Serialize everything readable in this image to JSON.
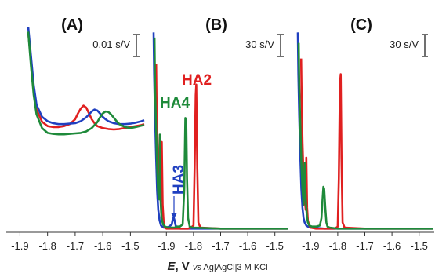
{
  "chart_data": [
    {
      "panel": "(A)",
      "type": "line",
      "title": "(A)",
      "scale_bar": "0.01 s/V",
      "xlim": [
        -1.87,
        -1.45
      ],
      "ylim": [
        -0.06,
        0.24
      ],
      "xticks": [
        "-1.9",
        "-1.8",
        "-1.7",
        "-1.6",
        "-1.5"
      ],
      "xtick_values": [
        -1.9,
        -1.8,
        -1.7,
        -1.6,
        -1.5
      ],
      "series": [
        {
          "color": "#e02020",
          "x": [
            -1.87,
            -1.86,
            -1.85,
            -1.84,
            -1.82,
            -1.8,
            -1.78,
            -1.76,
            -1.74,
            -1.72,
            -1.7,
            -1.69,
            -1.68,
            -1.67,
            -1.66,
            -1.65,
            -1.64,
            -1.63,
            -1.62,
            -1.6,
            -1.58,
            -1.56,
            -1.54,
            -1.52,
            -1.5,
            -1.48,
            -1.46,
            -1.45
          ],
          "y": [
            0.22,
            0.16,
            0.1,
            0.06,
            0.035,
            0.026,
            0.024,
            0.024,
            0.026,
            0.03,
            0.04,
            0.052,
            0.062,
            0.068,
            0.064,
            0.052,
            0.04,
            0.032,
            0.026,
            0.022,
            0.02,
            0.019,
            0.02,
            0.022,
            0.024,
            0.026,
            0.028,
            0.03
          ]
        },
        {
          "color": "#2040c0",
          "x": [
            -1.87,
            -1.86,
            -1.85,
            -1.84,
            -1.82,
            -1.8,
            -1.78,
            -1.76,
            -1.74,
            -1.72,
            -1.7,
            -1.68,
            -1.66,
            -1.64,
            -1.63,
            -1.62,
            -1.61,
            -1.6,
            -1.59,
            -1.58,
            -1.56,
            -1.54,
            -1.52,
            -1.5,
            -1.48,
            -1.46,
            -1.45
          ],
          "y": [
            0.23,
            0.17,
            0.11,
            0.07,
            0.045,
            0.036,
            0.032,
            0.03,
            0.03,
            0.031,
            0.032,
            0.036,
            0.044,
            0.056,
            0.06,
            0.058,
            0.052,
            0.045,
            0.04,
            0.036,
            0.032,
            0.03,
            0.03,
            0.031,
            0.033,
            0.036,
            0.038
          ]
        },
        {
          "color": "#1e8a3a",
          "x": [
            -1.87,
            -1.86,
            -1.85,
            -1.84,
            -1.82,
            -1.8,
            -1.78,
            -1.76,
            -1.74,
            -1.72,
            -1.7,
            -1.68,
            -1.66,
            -1.64,
            -1.62,
            -1.61,
            -1.6,
            -1.59,
            -1.58,
            -1.57,
            -1.56,
            -1.55,
            -1.54,
            -1.52,
            -1.5,
            -1.48,
            -1.46,
            -1.45
          ],
          "y": [
            0.22,
            0.15,
            0.09,
            0.05,
            0.022,
            0.012,
            0.01,
            0.009,
            0.009,
            0.01,
            0.011,
            0.012,
            0.015,
            0.022,
            0.034,
            0.044,
            0.052,
            0.056,
            0.055,
            0.05,
            0.043,
            0.036,
            0.03,
            0.024,
            0.022,
            0.024,
            0.027,
            0.028
          ]
        }
      ]
    },
    {
      "panel": "(B)",
      "type": "line",
      "title": "(B)",
      "scale_bar": "30 s/V",
      "xlim": [
        -1.95,
        -1.45
      ],
      "ylim": [
        0,
        200
      ],
      "xticks": [
        "-1.9",
        "-1.8",
        "-1.7",
        "-1.6",
        "-1.5"
      ],
      "xtick_values": [
        -1.9,
        -1.8,
        -1.7,
        -1.6,
        -1.5
      ],
      "annotations": [
        {
          "text": "HA2",
          "color": "#e02020",
          "x": -1.75,
          "y": 150
        },
        {
          "text": "HA4",
          "color": "#1e8a3a",
          "x": -1.895,
          "y": 128
        },
        {
          "text": "HA3",
          "color": "#2040c0",
          "x": -1.885,
          "y": 40
        }
      ],
      "series": [
        {
          "color": "#2040c0",
          "x": [
            -1.947,
            -1.945,
            -1.942,
            -1.938,
            -1.934,
            -1.93,
            -1.925,
            -1.92,
            -1.91,
            -1.9,
            -1.89,
            -1.88,
            -1.876,
            -1.873,
            -1.87,
            -1.866,
            -1.86,
            -1.85,
            -1.8,
            -1.7,
            -1.6,
            -1.5,
            -1.45
          ],
          "y": [
            190,
            150,
            110,
            70,
            38,
            20,
            10,
            5,
            3,
            3,
            4,
            6,
            12,
            13,
            10,
            5,
            3,
            2,
            2,
            2,
            2,
            2,
            2
          ]
        },
        {
          "color": "#e02020",
          "x": [
            -1.938,
            -1.936,
            -1.932,
            -1.926,
            -1.92,
            -1.917,
            -1.914,
            -1.91,
            -1.906,
            -1.9,
            -1.88,
            -1.86,
            -1.84,
            -1.82,
            -1.81,
            -1.8,
            -1.796,
            -1.792,
            -1.79,
            -1.786,
            -1.782,
            -1.775,
            -1.7,
            -1.6,
            -1.5,
            -1.45
          ],
          "y": [
            160,
            120,
            80,
            45,
            28,
            85,
            25,
            8,
            3,
            2,
            2,
            2,
            2,
            2,
            3,
            5,
            60,
            130,
            140,
            60,
            8,
            3,
            2,
            2,
            2,
            2
          ]
        },
        {
          "color": "#1e8a3a",
          "x": [
            -1.944,
            -1.942,
            -1.938,
            -1.934,
            -1.93,
            -1.926,
            -1.924,
            -1.921,
            -1.918,
            -1.912,
            -1.905,
            -1.895,
            -1.88,
            -1.87,
            -1.86,
            -1.85,
            -1.84,
            -1.834,
            -1.83,
            -1.827,
            -1.824,
            -1.82,
            -1.814,
            -1.805,
            -1.7,
            -1.6,
            -1.5,
            -1.45
          ],
          "y": [
            185,
            140,
            95,
            60,
            35,
            30,
            92,
            28,
            12,
            6,
            4,
            3,
            3,
            3,
            4,
            4,
            6,
            40,
            108,
            105,
            50,
            12,
            4,
            3,
            2,
            2,
            2,
            2
          ]
        }
      ]
    },
    {
      "panel": "(C)",
      "type": "line",
      "title": "(C)",
      "scale_bar": "30 s/V",
      "xlim": [
        -1.95,
        -1.45
      ],
      "ylim": [
        0,
        200
      ],
      "xticks": [
        "-1.9",
        "-1.8",
        "-1.7",
        "-1.6",
        "-1.5"
      ],
      "xtick_values": [
        -1.9,
        -1.8,
        -1.7,
        -1.6,
        -1.5
      ],
      "series": [
        {
          "color": "#2040c0",
          "x": [
            -1.947,
            -1.945,
            -1.942,
            -1.938,
            -1.934,
            -1.93,
            -1.926,
            -1.922,
            -1.916,
            -1.91,
            -1.9,
            -1.89,
            -1.85,
            -1.8,
            -1.7,
            -1.6,
            -1.5,
            -1.45
          ],
          "y": [
            190,
            150,
            110,
            70,
            40,
            22,
            12,
            8,
            5,
            4,
            3,
            3,
            2,
            2,
            2,
            2,
            2,
            2
          ]
        },
        {
          "color": "#e02020",
          "x": [
            -1.935,
            -1.933,
            -1.93,
            -1.926,
            -1.922,
            -1.918,
            -1.916,
            -1.913,
            -1.91,
            -1.905,
            -1.9,
            -1.88,
            -1.85,
            -1.82,
            -1.81,
            -1.8,
            -1.796,
            -1.792,
            -1.789,
            -1.786,
            -1.782,
            -1.775,
            -1.7,
            -1.6,
            -1.5,
            -1.45
          ],
          "y": [
            165,
            125,
            85,
            50,
            30,
            20,
            70,
            22,
            10,
            5,
            3,
            2,
            2,
            2,
            2,
            4,
            50,
            140,
            150,
            70,
            8,
            3,
            2,
            2,
            2,
            2
          ]
        },
        {
          "color": "#1e8a3a",
          "x": [
            -1.944,
            -1.942,
            -1.938,
            -1.934,
            -1.93,
            -1.926,
            -1.922,
            -1.918,
            -1.914,
            -1.91,
            -1.905,
            -1.895,
            -1.88,
            -1.866,
            -1.86,
            -1.856,
            -1.853,
            -1.85,
            -1.846,
            -1.842,
            -1.838,
            -1.83,
            -1.8,
            -1.7,
            -1.6,
            -1.5,
            -1.45
          ],
          "y": [
            180,
            140,
            100,
            65,
            40,
            25,
            65,
            30,
            14,
            8,
            5,
            4,
            4,
            5,
            12,
            30,
            42,
            40,
            22,
            8,
            4,
            3,
            2,
            2,
            2,
            2,
            2
          ]
        }
      ]
    }
  ],
  "x_axis_label": {
    "symbol": "E",
    "unit": ", V ",
    "vs": "vs",
    "reference": " Ag|AgCl|3 M KCl"
  }
}
